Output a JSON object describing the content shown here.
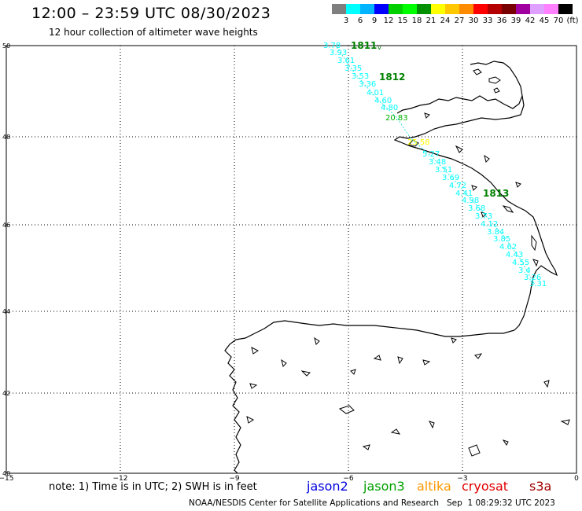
{
  "header": {
    "title": "12:00 – 23:59 UTC 08/30/2023",
    "subtitle": "12 hour collection of altimeter wave heights"
  },
  "color_scale": {
    "swatches": [
      "#7f7f7f",
      "#00ffff",
      "#00b4ff",
      "#0000ff",
      "#00d000",
      "#00ff00",
      "#009000",
      "#ffff00",
      "#ffc800",
      "#ff8c00",
      "#ff0000",
      "#b40000",
      "#780000",
      "#a000a0",
      "#e0a0ff",
      "#ff80ff",
      "#000000"
    ],
    "labels": [
      "3",
      "6",
      "9",
      "12",
      "15",
      "18",
      "21",
      "24",
      "27",
      "30",
      "33",
      "36",
      "39",
      "42",
      "45",
      "70",
      "(ft)"
    ]
  },
  "axes": {
    "lon_labels": [
      "−15",
      "−12",
      "−9",
      "−6",
      "−3",
      "0"
    ],
    "lat_labels": [
      "50",
      "48",
      "46",
      "44",
      "42",
      "40"
    ]
  },
  "tracks": [
    {
      "label": "1811",
      "color": "#008000"
    },
    {
      "label": "1812",
      "color": "#008000"
    },
    {
      "label": "1813",
      "color": "#008000"
    }
  ],
  "wave_heights": [
    {
      "text": "3.78",
      "color": "#00ffff"
    },
    {
      "text": "3.93",
      "color": "#00ffff"
    },
    {
      "text": "3.61",
      "color": "#00ffff"
    },
    {
      "text": "3.35",
      "color": "#00ffff"
    },
    {
      "text": "3.53",
      "color": "#00ffff"
    },
    {
      "text": "3.36",
      "color": "#00ffff"
    },
    {
      "text": "4.01",
      "color": "#00ffff"
    },
    {
      "text": "4.60",
      "color": "#00ffff"
    },
    {
      "text": "4.80",
      "color": "#00ffff"
    },
    {
      "text": "20.83",
      "color": "#00b000"
    },
    {
      "text": "25.58",
      "color": "#ffff00"
    },
    {
      "text": "5.27",
      "color": "#00ffff"
    },
    {
      "text": "3.48",
      "color": "#00ffff"
    },
    {
      "text": "3.51",
      "color": "#00ffff"
    },
    {
      "text": "3.69",
      "color": "#00ffff"
    },
    {
      "text": "4.72",
      "color": "#00ffff"
    },
    {
      "text": "4.41",
      "color": "#00ffff"
    },
    {
      "text": "4.98",
      "color": "#00ffff"
    },
    {
      "text": "3.68",
      "color": "#00ffff"
    },
    {
      "text": "3.73",
      "color": "#00ffff"
    },
    {
      "text": "4.12",
      "color": "#00ffff"
    },
    {
      "text": "3.84",
      "color": "#00ffff"
    },
    {
      "text": "3.85",
      "color": "#00ffff"
    },
    {
      "text": "4.62",
      "color": "#00ffff"
    },
    {
      "text": "4.43",
      "color": "#00ffff"
    },
    {
      "text": "4.55",
      "color": "#00ffff"
    },
    {
      "text": "3.4",
      "color": "#00ffff"
    },
    {
      "text": "3.26",
      "color": "#00ffff"
    },
    {
      "text": "3.31",
      "color": "#00ffff"
    }
  ],
  "footer": {
    "note": "note:  1) Time is in UTC;  2) SWH is in feet",
    "satellites": [
      {
        "name": "jason2",
        "color": "#0000e0"
      },
      {
        "name": "jason3",
        "color": "#00a000"
      },
      {
        "name": "altika",
        "color": "#ff9900"
      },
      {
        "name": "cryosat",
        "color": "#e00000"
      },
      {
        "name": "s3a",
        "color": "#a00000"
      }
    ],
    "credit": "NOAA/NESDIS Center for Satellite Applications and Research   Sep  1 08:29:32 UTC 2023"
  }
}
